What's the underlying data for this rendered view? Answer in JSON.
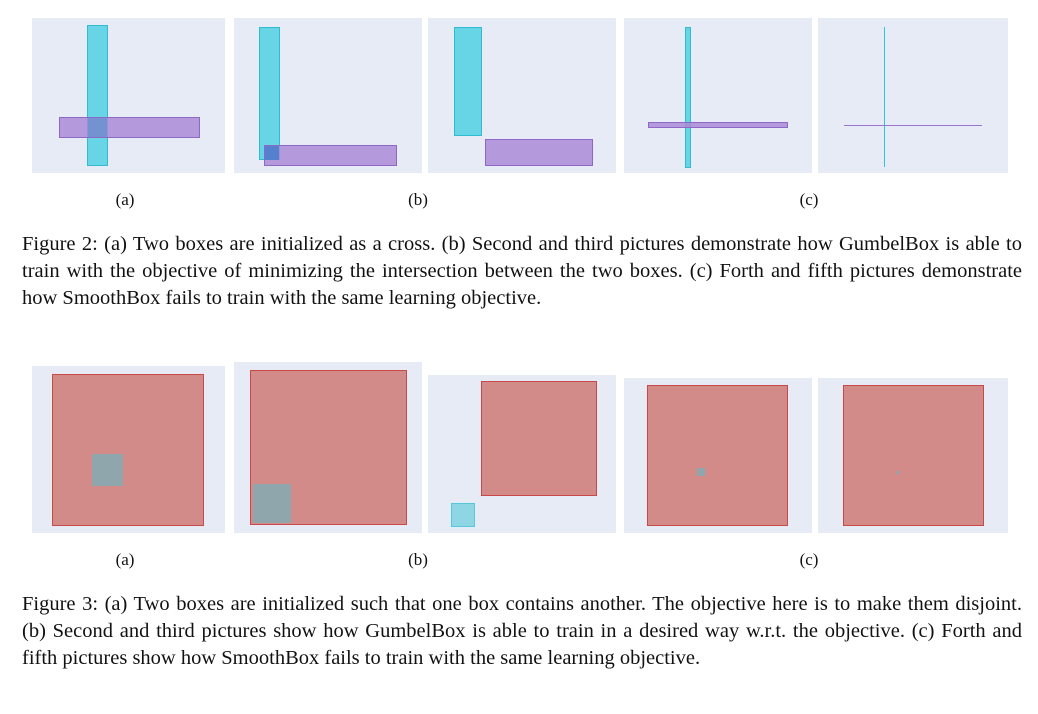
{
  "figure2": {
    "labels": {
      "a": "(a)",
      "b": "(b)",
      "c": "(c)"
    },
    "caption": "Figure 2: (a) Two boxes are initialized as a cross. (b) Second and third pictures demonstrate how GumbelBox is able to train with the objective of minimizing the intersection between the two boxes. (c) Forth and fifth pictures demonstrate how SmoothBox fails to train with the same learning objective."
  },
  "figure3": {
    "labels": {
      "a": "(a)",
      "b": "(b)",
      "c": "(c)"
    },
    "caption": "Figure 3: (a) Two boxes are initialized such that one box contains another. The objective here is to make them disjoint. (b) Second and third pictures show how GumbelBox is able to train in a desired way w.r.t. the objective. (c) Forth and fifth pictures show how SmoothBox fails to train with the same learning objective."
  },
  "colors": {
    "panel_background": "#e6ebf5",
    "cyan_box": "#55d2e4",
    "purple_box": "#aa8cd7",
    "red_box": "#d38b8a"
  }
}
